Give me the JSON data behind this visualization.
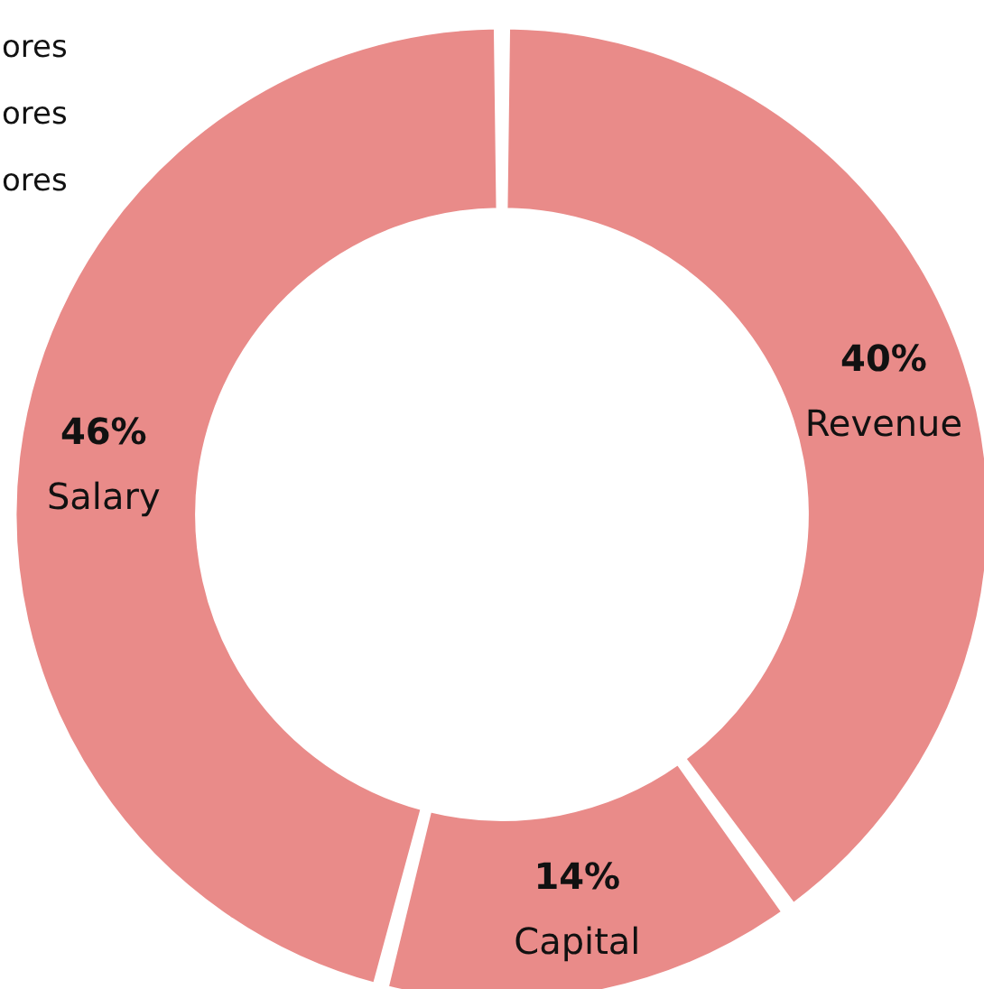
{
  "chart_data": {
    "type": "donut",
    "categories": [
      "Revenue",
      "Capital",
      "Salary"
    ],
    "values": [
      40,
      14,
      46
    ],
    "value_labels": [
      "40%",
      "14%",
      "46%"
    ],
    "colors": [
      "#e98b89",
      "#e98b89",
      "#e98b89"
    ],
    "annotations": [
      "ores",
      "ores",
      "ores"
    ],
    "legend": false
  }
}
